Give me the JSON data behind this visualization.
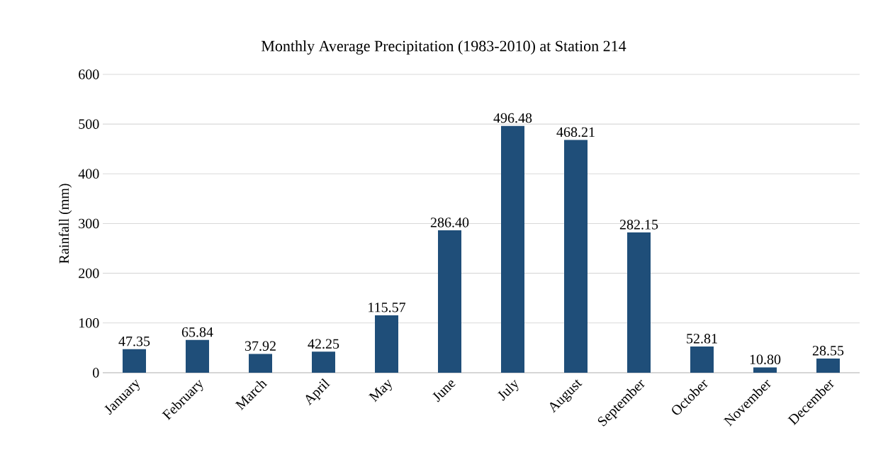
{
  "chart_data": {
    "type": "bar",
    "title": "Monthly Average Precipitation (1983-2010) at  Station 214",
    "ylabel": "Rainfall (mm)",
    "categories": [
      "January",
      "February",
      "March",
      "April",
      "May",
      "June",
      "July",
      "August",
      "September",
      "October",
      "November",
      "December"
    ],
    "values": [
      47.35,
      65.84,
      37.92,
      42.25,
      115.57,
      286.4,
      496.48,
      468.21,
      282.15,
      52.81,
      10.8,
      28.55
    ],
    "value_labels": [
      "47.35",
      "65.84",
      "37.92",
      "42.25",
      "115.57",
      "286.40",
      "496.48",
      "468.21",
      "282.15",
      "52.81",
      "10.80",
      "28.55"
    ],
    "color": "#1f4e79",
    "ylim": [
      0,
      600
    ],
    "yticks": [
      0,
      100,
      200,
      300,
      400,
      500,
      600
    ],
    "grid": "y"
  }
}
